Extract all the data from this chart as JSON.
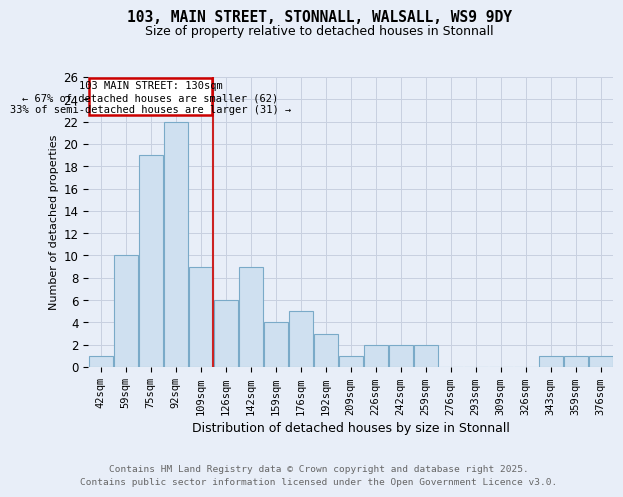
{
  "title_line1": "103, MAIN STREET, STONNALL, WALSALL, WS9 9DY",
  "title_line2": "Size of property relative to detached houses in Stonnall",
  "xlabel": "Distribution of detached houses by size in Stonnall",
  "ylabel": "Number of detached properties",
  "bin_labels": [
    "42sqm",
    "59sqm",
    "75sqm",
    "92sqm",
    "109sqm",
    "126sqm",
    "142sqm",
    "159sqm",
    "176sqm",
    "192sqm",
    "209sqm",
    "226sqm",
    "242sqm",
    "259sqm",
    "276sqm",
    "293sqm",
    "309sqm",
    "326sqm",
    "343sqm",
    "359sqm",
    "376sqm"
  ],
  "counts": [
    1,
    10,
    19,
    22,
    9,
    6,
    9,
    4,
    5,
    3,
    1,
    2,
    2,
    2,
    0,
    0,
    0,
    0,
    1,
    1,
    1
  ],
  "bar_color": "#cfe0f0",
  "bar_edge_color": "#7aaac8",
  "subject_bin_index": 5,
  "annotation_line1": "103 MAIN STREET: 130sqm",
  "annotation_line2": "← 67% of detached houses are smaller (62)",
  "annotation_line3": "33% of semi-detached houses are larger (31) →",
  "vline_color": "#cc2222",
  "annotation_box_color": "#ffffff",
  "annotation_box_edge": "#cc0000",
  "footer_line1": "Contains HM Land Registry data © Crown copyright and database right 2025.",
  "footer_line2": "Contains public sector information licensed under the Open Government Licence v3.0.",
  "ylim": [
    0,
    26
  ],
  "yticks": [
    0,
    2,
    4,
    6,
    8,
    10,
    12,
    14,
    16,
    18,
    20,
    22,
    24,
    26
  ],
  "grid_color": "#c8d0e0",
  "background_color": "#e8eef8"
}
